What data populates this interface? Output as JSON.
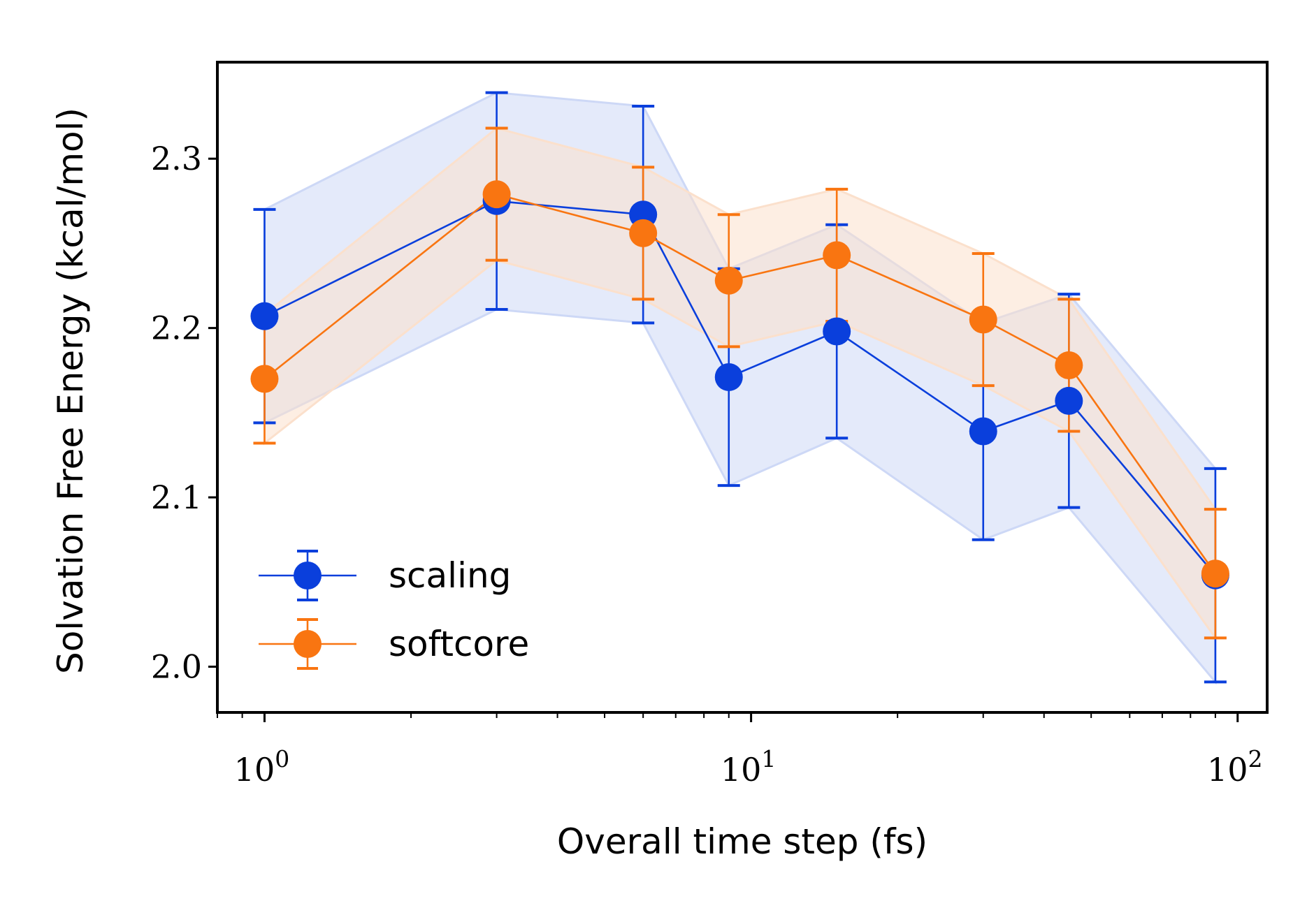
{
  "chart_data": {
    "type": "line",
    "xscale": "log",
    "xlabel": "Overall time step (fs)",
    "ylabel": "Solvation Free Energy (kcal/mol)",
    "xlim": [
      0.8,
      115
    ],
    "ylim": [
      1.973,
      2.357
    ],
    "yticks": [
      "2.0",
      "2.1",
      "2.2",
      "2.3"
    ],
    "xticks": [
      {
        "base": "10",
        "exp": "0"
      },
      {
        "base": "10",
        "exp": "1"
      },
      {
        "base": "10",
        "exp": "2"
      }
    ],
    "x": [
      1,
      3,
      6,
      9,
      15,
      30,
      45,
      90
    ],
    "grid": false,
    "legend_position": "lower-left",
    "series": [
      {
        "name": "scaling",
        "color": "#0a3fdc",
        "fill_color": "#cdd8f6",
        "values": [
          2.207,
          2.275,
          2.267,
          2.171,
          2.198,
          2.139,
          2.157,
          2.054
        ],
        "errors": [
          0.063,
          0.064,
          0.064,
          0.064,
          0.063,
          0.064,
          0.063,
          0.063
        ]
      },
      {
        "name": "softcore",
        "color": "#f97511",
        "fill_color": "#fbe0cc",
        "values": [
          2.17,
          2.279,
          2.256,
          2.228,
          2.243,
          2.205,
          2.178,
          2.055
        ],
        "errors": [
          0.038,
          0.039,
          0.039,
          0.039,
          0.039,
          0.039,
          0.039,
          0.038
        ]
      }
    ]
  }
}
